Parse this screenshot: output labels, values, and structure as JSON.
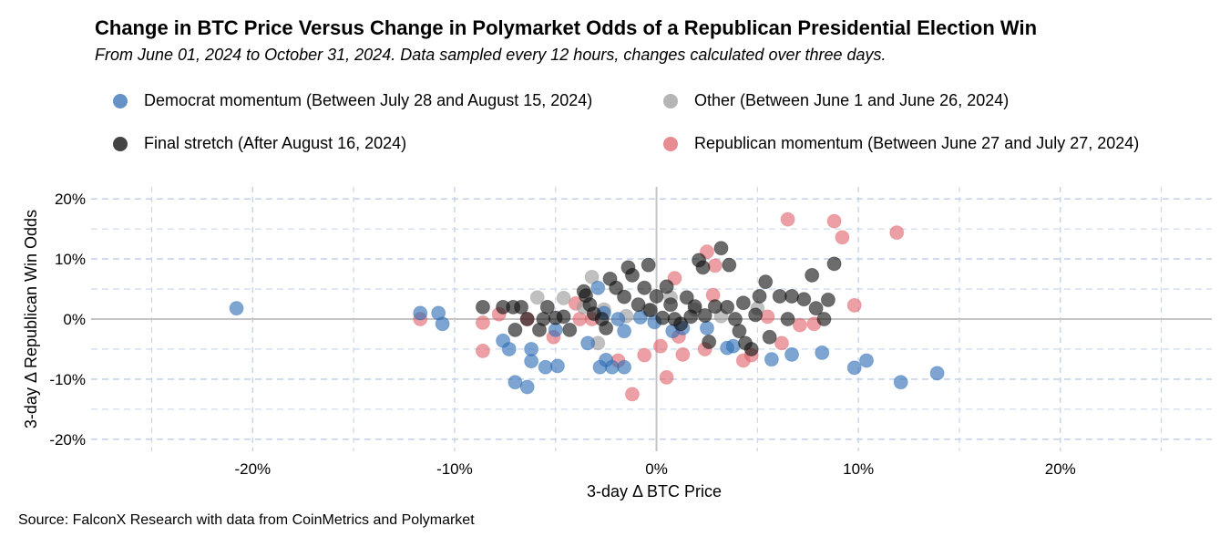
{
  "chart_data": {
    "type": "scatter",
    "title": "Change in BTC Price Versus Change in Polymarket Odds of a Republican Presidential Election Win",
    "subtitle": "From June 01, 2024 to October 31, 2024. Data sampled every 12 hours, changes calculated over three days.",
    "xlabel": "3-day Δ BTC Price",
    "ylabel": "3-day Δ Republican Win Odds",
    "source": "Source: FalconX Research with data from CoinMetrics and Polymarket",
    "xlim": [
      -28,
      27.5
    ],
    "ylim": [
      -22,
      22
    ],
    "xticks": [
      -20,
      -10,
      0,
      10,
      20
    ],
    "xtick_labels": [
      "-20%",
      "-10%",
      "0%",
      "10%",
      "20%"
    ],
    "yticks": [
      -20,
      -10,
      0,
      10,
      20
    ],
    "ytick_labels": [
      "-20%",
      "-10%",
      "0%",
      "10%",
      "20%"
    ],
    "grid": true,
    "legend_position": "top",
    "series": [
      {
        "name": "Democrat momentum (Between July 28 and August 15, 2024)",
        "color": "#2f6db5",
        "points": [
          [
            -20.8,
            1.8
          ],
          [
            -11.7,
            1.0
          ],
          [
            -10.8,
            1.0
          ],
          [
            -10.6,
            -0.8
          ],
          [
            -7.6,
            -3.6
          ],
          [
            -7.3,
            -5.0
          ],
          [
            -7.0,
            -10.5
          ],
          [
            -6.4,
            -11.3
          ],
          [
            -6.2,
            -5.0
          ],
          [
            -6.2,
            -7.0
          ],
          [
            -5.5,
            -8.0
          ],
          [
            -4.9,
            -7.8
          ],
          [
            -5.0,
            -1.8
          ],
          [
            -3.4,
            -4.0
          ],
          [
            -2.8,
            -8.0
          ],
          [
            -2.5,
            -6.8
          ],
          [
            -2.2,
            -8.0
          ],
          [
            -1.6,
            -8.0
          ],
          [
            -1.6,
            -2.0
          ],
          [
            -1.9,
            0.0
          ],
          [
            -2.6,
            1.0
          ],
          [
            -2.9,
            5.2
          ],
          [
            -0.8,
            0.3
          ],
          [
            -0.1,
            -0.5
          ],
          [
            0.8,
            -2.0
          ],
          [
            1.3,
            -1.5
          ],
          [
            2.5,
            -1.5
          ],
          [
            3.5,
            -4.8
          ],
          [
            3.8,
            -4.5
          ],
          [
            5.7,
            -6.7
          ],
          [
            6.7,
            -5.9
          ],
          [
            8.2,
            -5.6
          ],
          [
            9.8,
            -8.1
          ],
          [
            10.4,
            -6.9
          ],
          [
            12.1,
            -10.5
          ],
          [
            13.9,
            -9.0
          ]
        ]
      },
      {
        "name": "Other (Between June 1 and June 26, 2024)",
        "color": "#9a9a9a",
        "points": [
          [
            -5.9,
            3.6
          ],
          [
            -4.6,
            3.5
          ],
          [
            -3.6,
            2.0
          ],
          [
            -2.9,
            -4.0
          ],
          [
            -3.2,
            7.0
          ],
          [
            -2.6,
            1.6
          ],
          [
            -1.5,
            0.5
          ],
          [
            -0.4,
            1.5
          ],
          [
            0.7,
            3.6
          ],
          [
            1.9,
            1.6
          ],
          [
            3.2,
            0.5
          ],
          [
            5.0,
            1.8
          ]
        ]
      },
      {
        "name": "Final stretch (After August 16, 2024)",
        "color": "#111111",
        "points": [
          [
            -8.6,
            2.0
          ],
          [
            -7.6,
            2.0
          ],
          [
            -7.1,
            2.0
          ],
          [
            -6.7,
            2.0
          ],
          [
            -7.0,
            -1.8
          ],
          [
            -6.4,
            0.0
          ],
          [
            -5.8,
            -1.8
          ],
          [
            -5.6,
            0.0
          ],
          [
            -5.4,
            2.0
          ],
          [
            -5.0,
            0.2
          ],
          [
            -4.6,
            0.4
          ],
          [
            -4.3,
            -1.8
          ],
          [
            -3.6,
            4.6
          ],
          [
            -3.5,
            3.9
          ],
          [
            -3.3,
            2.4
          ],
          [
            -3.1,
            0.9
          ],
          [
            -2.7,
            0.0
          ],
          [
            -2.5,
            -1.5
          ],
          [
            -2.3,
            6.7
          ],
          [
            -2.0,
            5.2
          ],
          [
            -1.6,
            3.7
          ],
          [
            -1.4,
            8.6
          ],
          [
            -1.2,
            7.3
          ],
          [
            -0.9,
            2.4
          ],
          [
            -0.6,
            5.2
          ],
          [
            -0.4,
            9.0
          ],
          [
            -0.3,
            1.5
          ],
          [
            0.0,
            3.8
          ],
          [
            0.3,
            0.2
          ],
          [
            0.5,
            5.4
          ],
          [
            0.7,
            2.4
          ],
          [
            0.9,
            0.0
          ],
          [
            1.2,
            -0.8
          ],
          [
            1.5,
            3.6
          ],
          [
            1.7,
            0.4
          ],
          [
            1.9,
            2.1
          ],
          [
            2.1,
            9.8
          ],
          [
            2.3,
            8.6
          ],
          [
            2.4,
            0.6
          ],
          [
            2.6,
            -3.8
          ],
          [
            2.9,
            2.1
          ],
          [
            3.2,
            11.8
          ],
          [
            3.5,
            2.0
          ],
          [
            3.6,
            9.0
          ],
          [
            3.9,
            0.0
          ],
          [
            4.1,
            -2.0
          ],
          [
            4.3,
            2.7
          ],
          [
            4.4,
            -4.0
          ],
          [
            4.7,
            -5.0
          ],
          [
            4.9,
            0.7
          ],
          [
            5.1,
            3.8
          ],
          [
            5.4,
            6.2
          ],
          [
            5.6,
            -3.0
          ],
          [
            6.1,
            3.8
          ],
          [
            6.5,
            0.0
          ],
          [
            6.7,
            3.8
          ],
          [
            7.3,
            3.3
          ],
          [
            7.7,
            7.3
          ],
          [
            7.9,
            1.8
          ],
          [
            8.3,
            0.0
          ],
          [
            8.5,
            3.2
          ],
          [
            8.8,
            9.2
          ]
        ]
      },
      {
        "name": "Republican momentum (Between June 27 and July 27, 2024)",
        "color": "#e0666e",
        "points": [
          [
            -11.7,
            0.0
          ],
          [
            -8.6,
            -0.6
          ],
          [
            -8.6,
            -5.3
          ],
          [
            -7.8,
            0.8
          ],
          [
            -6.4,
            0.0
          ],
          [
            -5.1,
            -3.0
          ],
          [
            -4.0,
            2.6
          ],
          [
            -3.8,
            0.0
          ],
          [
            -3.2,
            0.0
          ],
          [
            -1.9,
            -6.9
          ],
          [
            -1.2,
            -12.5
          ],
          [
            -0.6,
            -6.0
          ],
          [
            0.2,
            -4.5
          ],
          [
            0.5,
            -9.7
          ],
          [
            0.9,
            6.8
          ],
          [
            1.1,
            -2.9
          ],
          [
            1.3,
            -5.9
          ],
          [
            2.4,
            -5.0
          ],
          [
            2.5,
            11.2
          ],
          [
            2.8,
            4.0
          ],
          [
            2.9,
            8.9
          ],
          [
            4.3,
            -6.9
          ],
          [
            4.7,
            -6.0
          ],
          [
            5.5,
            0.4
          ],
          [
            6.2,
            -4.0
          ],
          [
            6.5,
            16.6
          ],
          [
            7.1,
            -1.0
          ],
          [
            7.8,
            -0.8
          ],
          [
            8.8,
            16.3
          ],
          [
            9.2,
            13.6
          ],
          [
            9.8,
            2.3
          ],
          [
            11.9,
            14.4
          ]
        ]
      }
    ]
  }
}
